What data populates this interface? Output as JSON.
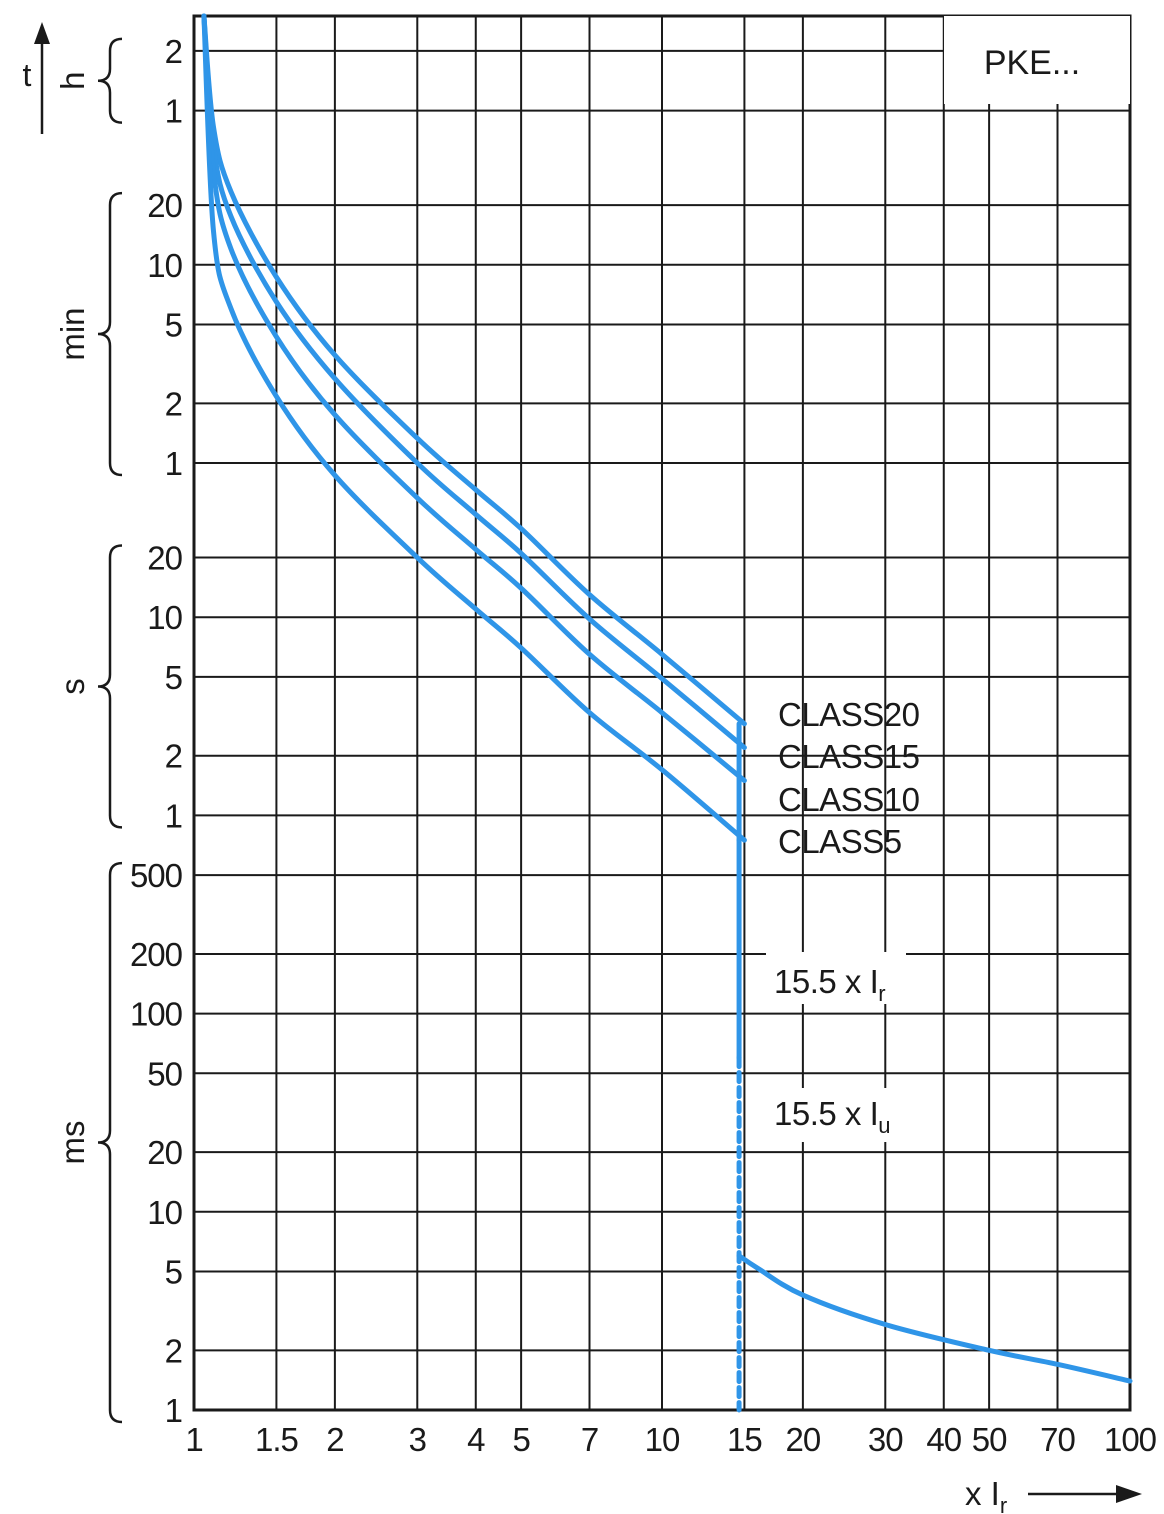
{
  "chart_data": {
    "type": "line",
    "title": "PKE...",
    "xlabel": "x Ir",
    "ylabel": "t",
    "x_scale": "log",
    "y_scale": "log",
    "xlim": [
      1,
      100
    ],
    "ylim_seconds": [
      0.001,
      10800
    ],
    "grid": true,
    "x_ticks": [
      {
        "value": 1,
        "label": "1"
      },
      {
        "value": 1.5,
        "label": "1.5"
      },
      {
        "value": 2,
        "label": "2"
      },
      {
        "value": 3,
        "label": "3"
      },
      {
        "value": 4,
        "label": "4"
      },
      {
        "value": 5,
        "label": "5"
      },
      {
        "value": 7,
        "label": "7"
      },
      {
        "value": 10,
        "label": "10"
      },
      {
        "value": 15,
        "label": "15"
      },
      {
        "value": 20,
        "label": "20"
      },
      {
        "value": 30,
        "label": "30"
      },
      {
        "value": 40,
        "label": "40"
      },
      {
        "value": 50,
        "label": "50"
      },
      {
        "value": 70,
        "label": "70"
      },
      {
        "value": 100,
        "label": "100"
      }
    ],
    "y_ticks": [
      {
        "seconds": 7200,
        "label": "2"
      },
      {
        "seconds": 3600,
        "label": "1"
      },
      {
        "seconds": 1200,
        "label": "20"
      },
      {
        "seconds": 600,
        "label": "10"
      },
      {
        "seconds": 300,
        "label": "5"
      },
      {
        "seconds": 120,
        "label": "2"
      },
      {
        "seconds": 60,
        "label": "1"
      },
      {
        "seconds": 20,
        "label": "20"
      },
      {
        "seconds": 10,
        "label": "10"
      },
      {
        "seconds": 5,
        "label": "5"
      },
      {
        "seconds": 2,
        "label": "2"
      },
      {
        "seconds": 1,
        "label": "1"
      },
      {
        "seconds": 0.5,
        "label": "500"
      },
      {
        "seconds": 0.2,
        "label": "200"
      },
      {
        "seconds": 0.1,
        "label": "100"
      },
      {
        "seconds": 0.05,
        "label": "50"
      },
      {
        "seconds": 0.02,
        "label": "20"
      },
      {
        "seconds": 0.01,
        "label": "10"
      },
      {
        "seconds": 0.005,
        "label": "5"
      },
      {
        "seconds": 0.002,
        "label": "2"
      },
      {
        "seconds": 0.001,
        "label": "1"
      }
    ],
    "y_units": [
      {
        "label": "h",
        "from_seconds": 3600,
        "to_seconds": 7200
      },
      {
        "label": "min",
        "from_seconds": 60,
        "to_seconds": 1200
      },
      {
        "label": "s",
        "from_seconds": 1,
        "to_seconds": 20
      },
      {
        "label": "ms",
        "from_seconds": 0.001,
        "to_seconds": 0.5
      }
    ],
    "series": [
      {
        "name": "CLASS20",
        "points": [
          [
            1.05,
            10800
          ],
          [
            1.1,
            3000
          ],
          [
            1.2,
            1400
          ],
          [
            1.5,
            520
          ],
          [
            2,
            210
          ],
          [
            3,
            80
          ],
          [
            4,
            44
          ],
          [
            5,
            28
          ],
          [
            7,
            13
          ],
          [
            10,
            6.5
          ],
          [
            15,
            2.9
          ]
        ]
      },
      {
        "name": "CLASS15",
        "points": [
          [
            1.05,
            10800
          ],
          [
            1.1,
            2400
          ],
          [
            1.2,
            1050
          ],
          [
            1.5,
            390
          ],
          [
            2,
            160
          ],
          [
            3,
            60
          ],
          [
            4,
            33
          ],
          [
            5,
            21
          ],
          [
            7,
            9.8
          ],
          [
            10,
            4.9
          ],
          [
            15,
            2.2
          ]
        ]
      },
      {
        "name": "CLASS10",
        "points": [
          [
            1.05,
            10800
          ],
          [
            1.1,
            1800
          ],
          [
            1.2,
            720
          ],
          [
            1.5,
            260
          ],
          [
            2,
            105
          ],
          [
            3,
            40
          ],
          [
            4,
            22
          ],
          [
            5,
            14
          ],
          [
            7,
            6.5
          ],
          [
            10,
            3.3
          ],
          [
            15,
            1.5
          ]
        ]
      },
      {
        "name": "CLASS5",
        "points": [
          [
            1.05,
            10800
          ],
          [
            1.1,
            900
          ],
          [
            1.2,
            360
          ],
          [
            1.5,
            130
          ],
          [
            2,
            52
          ],
          [
            3,
            20
          ],
          [
            4,
            11
          ],
          [
            5,
            7
          ],
          [
            7,
            3.3
          ],
          [
            10,
            1.7
          ],
          [
            15,
            0.75
          ]
        ]
      }
    ],
    "trip_lines": [
      {
        "name": "15.5 x Ir",
        "x": 15.5,
        "y_from": 0.75,
        "y_to": 0.06,
        "style": "solid"
      },
      {
        "name": "15.5 x Iu",
        "x": 15.5,
        "y_from": 0.06,
        "y_to": 0.001,
        "style": "dashed"
      }
    ],
    "instantaneous_curve": {
      "points": [
        [
          15.5,
          0.006
        ],
        [
          16,
          0.0052
        ],
        [
          20,
          0.0038
        ],
        [
          30,
          0.0027
        ],
        [
          50,
          0.002
        ],
        [
          70,
          0.0017
        ],
        [
          100,
          0.0014
        ]
      ]
    },
    "annotations": {
      "class20": "CLASS20",
      "class15": "CLASS15",
      "class10": "CLASS10",
      "class5": "CLASS5",
      "ir_main": "15.5 x I",
      "ir_sub": "r",
      "iu_main": "15.5 x I",
      "iu_sub": "u",
      "xlabel_main": "x I",
      "xlabel_sub": "r"
    },
    "color": "#2f95e8"
  }
}
